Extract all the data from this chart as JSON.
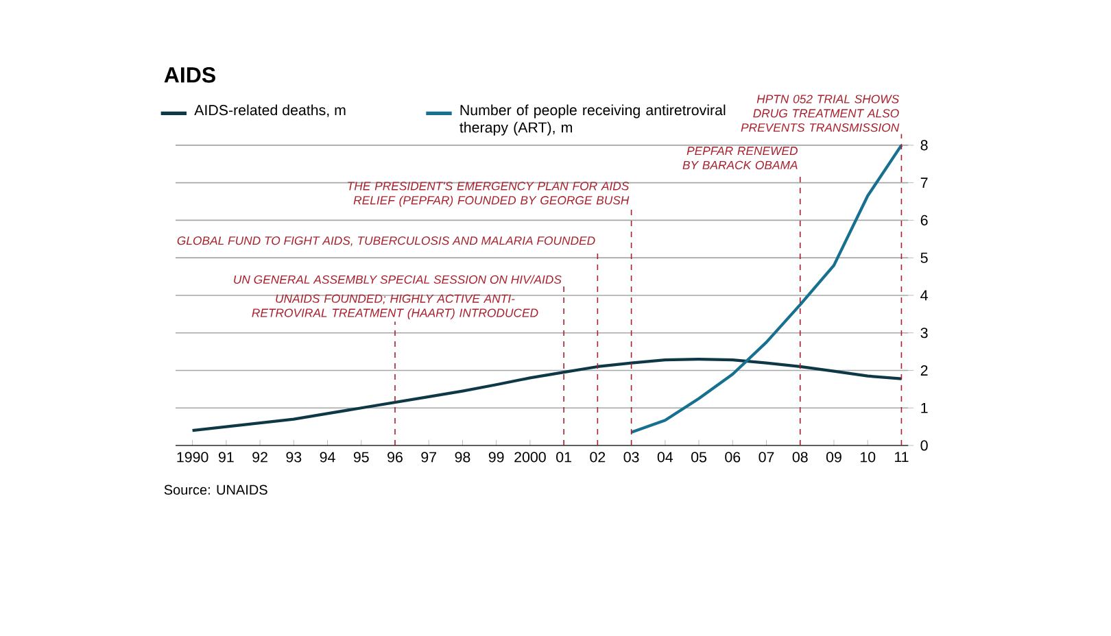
{
  "chart_data": {
    "type": "line",
    "title": "AIDS",
    "x": [
      1990,
      1991,
      1992,
      1993,
      1994,
      1995,
      1996,
      1997,
      1998,
      1999,
      2000,
      2001,
      2002,
      2003,
      2004,
      2005,
      2006,
      2007,
      2008,
      2009,
      2010,
      2011
    ],
    "series": [
      {
        "name": "AIDS-related deaths, m",
        "color": "#0e3846",
        "values": [
          0.4,
          0.5,
          0.6,
          0.7,
          0.85,
          1.0,
          1.15,
          1.3,
          1.45,
          1.62,
          1.8,
          1.95,
          2.1,
          2.2,
          2.28,
          2.3,
          2.28,
          2.2,
          2.1,
          1.98,
          1.85,
          1.78
        ]
      },
      {
        "name": "Number of people receiving antiretroviral therapy (ART), m",
        "color": "#17708f",
        "values": [
          null,
          null,
          null,
          null,
          null,
          null,
          null,
          null,
          null,
          null,
          null,
          null,
          null,
          0.35,
          0.67,
          1.25,
          1.9,
          2.75,
          3.75,
          4.8,
          6.65,
          8.0
        ]
      }
    ],
    "xlim": [
      1989.5,
      2011.2
    ],
    "xticks": [
      {
        "value": 1990,
        "label": "1990"
      },
      {
        "value": 1991,
        "label": "91"
      },
      {
        "value": 1992,
        "label": "92"
      },
      {
        "value": 1993,
        "label": "93"
      },
      {
        "value": 1994,
        "label": "94"
      },
      {
        "value": 1995,
        "label": "95"
      },
      {
        "value": 1996,
        "label": "96"
      },
      {
        "value": 1997,
        "label": "97"
      },
      {
        "value": 1998,
        "label": "98"
      },
      {
        "value": 1999,
        "label": "99"
      },
      {
        "value": 2000,
        "label": "2000"
      },
      {
        "value": 2001,
        "label": "01"
      },
      {
        "value": 2002,
        "label": "02"
      },
      {
        "value": 2003,
        "label": "03"
      },
      {
        "value": 2004,
        "label": "04"
      },
      {
        "value": 2005,
        "label": "05"
      },
      {
        "value": 2006,
        "label": "06"
      },
      {
        "value": 2007,
        "label": "07"
      },
      {
        "value": 2008,
        "label": "08"
      },
      {
        "value": 2009,
        "label": "09"
      },
      {
        "value": 2010,
        "label": "10"
      },
      {
        "value": 2011,
        "label": "11"
      }
    ],
    "ylim": [
      0,
      8
    ],
    "yticks": [
      0,
      1,
      2,
      3,
      4,
      5,
      6,
      7,
      8
    ],
    "grid": "y",
    "legend": "top left",
    "marker": "none",
    "line_style": "solid",
    "ref_lines": [
      {
        "axis": "x",
        "value": 1996,
        "label": "UNAIDS FOUNDED; HIGHLY ACTIVE ANTI-RETROVIRAL TREATMENT (HAART) INTRODUCED",
        "color": "#a8202c",
        "line_style": "dashed"
      },
      {
        "axis": "x",
        "value": 2001,
        "label": "UN GENERAL ASSEMBLY SPECIAL SESSION ON HIV/AIDS",
        "color": "#a8202c",
        "line_style": "dashed"
      },
      {
        "axis": "x",
        "value": 2002,
        "label": "GLOBAL FUND TO FIGHT AIDS, TUBERCULOSIS AND MALARIA FOUNDED",
        "color": "#a8202c",
        "line_style": "dashed"
      },
      {
        "axis": "x",
        "value": 2003,
        "label": "THE PRESIDENT'S EMERGENCY PLAN FOR AIDS RELIEF (PEPFAR) FOUNDED BY GEORGE BUSH",
        "color": "#a8202c",
        "line_style": "dashed"
      },
      {
        "axis": "x",
        "value": 2008,
        "label": "PEPFAR RENEWED BY BARACK OBAMA",
        "color": "#a8202c",
        "line_style": "dashed"
      },
      {
        "axis": "x",
        "value": 2011,
        "label": "HPTN 052 TRIAL SHOWS DRUG TREATMENT ALSO PREVENTS TRANSMISSION",
        "color": "#a8202c",
        "line_style": "dashed"
      }
    ],
    "annotations": [
      "Source: UNAIDS"
    ]
  }
}
